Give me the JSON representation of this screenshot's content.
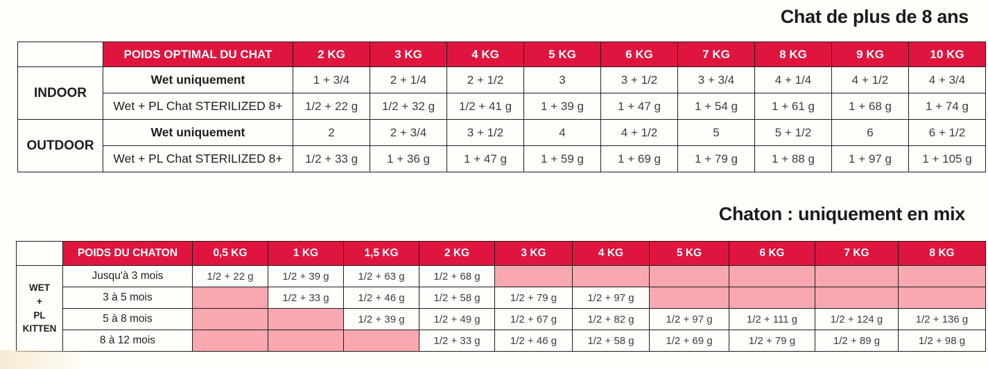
{
  "colors": {
    "page_bg": "#fffefb",
    "header_red": "#e0153f",
    "header_text": "#ffffff",
    "empty_pink": "#faa8b0",
    "border": "#1c1c1c",
    "cell_text": "#3c3c3c",
    "label_text": "#1d1d1b",
    "title_text": "#1b1b19"
  },
  "titles": {
    "adult": "Chat de plus de 8 ans",
    "kitten": "Chaton : uniquement en mix"
  },
  "adult_table": {
    "header": {
      "label": "POIDS OPTIMAL DU CHAT",
      "weights": [
        "2 KG",
        "3 KG",
        "4 KG",
        "5 KG",
        "6 KG",
        "7 KG",
        "8 KG",
        "9 KG",
        "10 KG"
      ]
    },
    "groups": [
      {
        "name": "INDOOR",
        "rows": [
          {
            "label": "Wet uniquement",
            "values": [
              "1 + 3/4",
              "2 + 1/4",
              "2 + 1/2",
              "3",
              "3 + 1/2",
              "3 + 3/4",
              "4 + 1/4",
              "4 + 1/2",
              "4 + 3/4"
            ]
          },
          {
            "label": "Wet + PL Chat STERILIZED 8+",
            "values": [
              "1/2 + 22 g",
              "1/2 + 32 g",
              "1/2 + 41 g",
              "1 + 39 g",
              "1 + 47 g",
              "1 + 54 g",
              "1 + 61 g",
              "1 + 68 g",
              "1 + 74 g"
            ]
          }
        ]
      },
      {
        "name": "OUTDOOR",
        "rows": [
          {
            "label": "Wet uniquement",
            "values": [
              "2",
              "2 + 3/4",
              "3 + 1/2",
              "4",
              "4 + 1/2",
              "5",
              "5 + 1/2",
              "6",
              "6 + 1/2"
            ]
          },
          {
            "label": "Wet + PL Chat STERILIZED 8+",
            "values": [
              "1/2 + 33 g",
              "1 + 36 g",
              "1 + 47 g",
              "1 + 59 g",
              "1 + 69 g",
              "1 + 79 g",
              "1 + 88 g",
              "1 + 97 g",
              "1 + 105 g"
            ]
          }
        ]
      }
    ]
  },
  "kitten_table": {
    "side_label": "WET\n+\nPL\nKITTEN",
    "header": {
      "label": "POIDS DU CHATON",
      "weights": [
        "0,5 KG",
        "1 KG",
        "1,5 KG",
        "2 KG",
        "3 KG",
        "4 KG",
        "5 KG",
        "6 KG",
        "7 KG",
        "8 KG"
      ]
    },
    "rows": [
      {
        "label": "Jusqu'à 3 mois",
        "values": [
          "1/2 + 22 g",
          "1/2 + 39 g",
          "1/2 + 63 g",
          "1/2 + 68 g",
          null,
          null,
          null,
          null,
          null,
          null
        ]
      },
      {
        "label": "3 à 5 mois",
        "values": [
          null,
          "1/2 + 33 g",
          "1/2 + 46 g",
          "1/2 + 58 g",
          "1/2 + 79 g",
          "1/2 + 97 g",
          null,
          null,
          null,
          null
        ]
      },
      {
        "label": "5 à 8 mois",
        "values": [
          null,
          null,
          "1/2 + 39 g",
          "1/2 + 49 g",
          "1/2 + 67 g",
          "1/2 + 82 g",
          "1/2 + 97 g",
          "1/2 + 111 g",
          "1/2 + 124 g",
          "1/2 + 136 g"
        ]
      },
      {
        "label": "8 à 12 mois",
        "values": [
          null,
          null,
          null,
          "1/2 + 33 g",
          "1/2 + 46 g",
          "1/2 + 58 g",
          "1/2 + 69 g",
          "1/2 + 79 g",
          "1/2 + 89 g",
          "1/2 + 98 g"
        ]
      }
    ]
  }
}
